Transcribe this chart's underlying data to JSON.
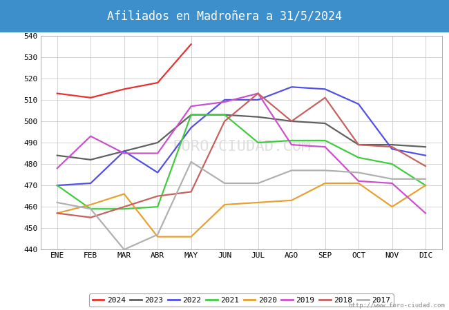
{
  "title": "Afiliados en Madroñera a 31/5/2024",
  "title_bg_color": "#3d8fcc",
  "title_text_color": "white",
  "ylim": [
    440,
    540
  ],
  "yticks": [
    440,
    450,
    460,
    470,
    480,
    490,
    500,
    510,
    520,
    530,
    540
  ],
  "months": [
    "ENE",
    "FEB",
    "MAR",
    "ABR",
    "MAY",
    "JUN",
    "JUL",
    "AGO",
    "SEP",
    "OCT",
    "NOV",
    "DIC"
  ],
  "url": "http://www.foro-ciudad.com",
  "series": {
    "2024": {
      "color": "#e83030",
      "data": [
        513,
        511,
        515,
        518,
        536,
        null,
        null,
        null,
        null,
        null,
        null,
        null
      ]
    },
    "2023": {
      "color": "#606060",
      "data": [
        484,
        482,
        486,
        490,
        503,
        503,
        502,
        500,
        499,
        489,
        489,
        488
      ]
    },
    "2022": {
      "color": "#5050e8",
      "data": [
        470,
        471,
        486,
        476,
        497,
        510,
        510,
        516,
        515,
        508,
        487,
        484
      ]
    },
    "2021": {
      "color": "#40cc40",
      "data": [
        470,
        459,
        459,
        460,
        503,
        503,
        490,
        491,
        491,
        483,
        480,
        470
      ]
    },
    "2020": {
      "color": "#e8a030",
      "data": [
        457,
        461,
        466,
        446,
        446,
        461,
        462,
        463,
        471,
        471,
        460,
        470
      ]
    },
    "2019": {
      "color": "#cc50cc",
      "data": [
        478,
        493,
        485,
        485,
        507,
        509,
        513,
        489,
        488,
        472,
        471,
        457
      ]
    },
    "2018": {
      "color": "#c86060",
      "data": [
        457,
        455,
        460,
        465,
        467,
        500,
        513,
        500,
        511,
        489,
        488,
        479
      ]
    },
    "2017": {
      "color": "#b0b0b0",
      "data": [
        462,
        459,
        440,
        447,
        481,
        471,
        471,
        477,
        477,
        476,
        473,
        473
      ]
    }
  },
  "legend_order": [
    "2024",
    "2023",
    "2022",
    "2021",
    "2020",
    "2019",
    "2018",
    "2017"
  ]
}
